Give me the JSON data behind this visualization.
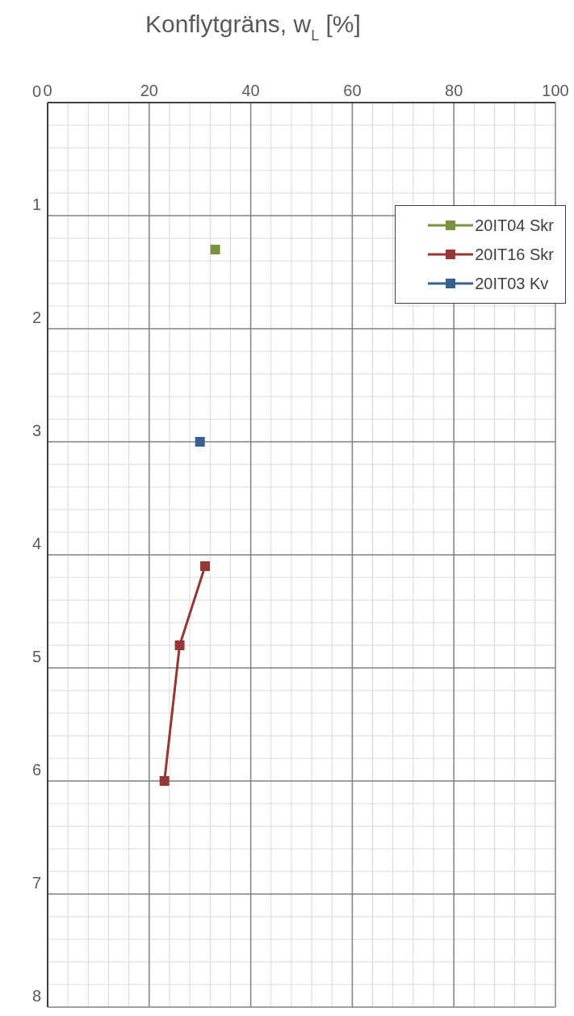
{
  "chart_data": {
    "type": "line",
    "xlabel": "Konflytgräns, w$_{L}$ [%]",
    "xlim": [
      0,
      100
    ],
    "ylim": [
      8,
      0
    ],
    "xticks": [
      0,
      {
        "value": 4,
        "label": null
      },
      {
        "value": 8,
        "label": null
      },
      {
        "value": 12,
        "label": null
      },
      {
        "value": 16,
        "label": null
      },
      20,
      {
        "value": 24,
        "label": null
      },
      {
        "value": 28,
        "label": null
      },
      {
        "value": 32,
        "label": null
      },
      {
        "value": 36,
        "label": null
      },
      40,
      {
        "value": 44,
        "label": null
      },
      {
        "value": 48,
        "label": null
      },
      {
        "value": 52,
        "label": null
      },
      {
        "value": 56,
        "label": null
      },
      60,
      {
        "value": 64,
        "label": null
      },
      {
        "value": 68,
        "label": null
      },
      {
        "value": 72,
        "label": null
      },
      {
        "value": 76,
        "label": null
      },
      80,
      {
        "value": 84,
        "label": null
      },
      {
        "value": 88,
        "label": null
      },
      {
        "value": 92,
        "label": null
      },
      {
        "value": 96,
        "label": null
      },
      100
    ],
    "yticks": [
      0,
      {
        "value": 0.2,
        "label": null
      },
      {
        "value": 0.4,
        "label": null
      },
      {
        "value": 0.6,
        "label": null
      },
      {
        "value": 0.8,
        "label": null
      },
      1,
      {
        "value": 1.2,
        "label": null
      },
      {
        "value": 1.4,
        "label": null
      },
      {
        "value": 1.6,
        "label": null
      },
      {
        "value": 1.8,
        "label": null
      },
      2,
      {
        "value": 2.2,
        "label": null
      },
      {
        "value": 2.4,
        "label": null
      },
      {
        "value": 2.6,
        "label": null
      },
      {
        "value": 2.8,
        "label": null
      },
      3,
      {
        "value": 3.2,
        "label": null
      },
      {
        "value": 3.4,
        "label": null
      },
      {
        "value": 3.6,
        "label": null
      },
      {
        "value": 3.8,
        "label": null
      },
      4,
      {
        "value": 4.2,
        "label": null
      },
      {
        "value": 4.4,
        "label": null
      },
      {
        "value": 4.6,
        "label": null
      },
      {
        "value": 4.8,
        "label": null
      },
      5,
      {
        "value": 5.2,
        "label": null
      },
      {
        "value": 5.4,
        "label": null
      },
      {
        "value": 5.6,
        "label": null
      },
      {
        "value": 5.8,
        "label": null
      },
      6,
      {
        "value": 6.2,
        "label": null
      },
      {
        "value": 6.4,
        "label": null
      },
      {
        "value": 6.6,
        "label": null
      },
      {
        "value": 6.8,
        "label": null
      },
      7,
      {
        "value": 7.2,
        "label": null
      },
      {
        "value": 7.4,
        "label": null
      },
      {
        "value": 7.6,
        "label": null
      },
      {
        "value": 7.8,
        "label": null
      },
      8
    ],
    "grid": true,
    "legend": "top right",
    "marker": "square",
    "line_style": "solid",
    "series": [
      {
        "name": "20IT04 Skr",
        "color": "#77933c",
        "x": [
          33
        ],
        "values": [
          1.3
        ]
      },
      {
        "name": "20IT16 Skr",
        "color": "#953735",
        "x": [
          31,
          26,
          23
        ],
        "values": [
          4.1,
          4.8,
          6.0
        ]
      },
      {
        "name": "20IT03 Kv",
        "color": "#376092",
        "x": [
          30
        ],
        "values": [
          3.0
        ]
      }
    ]
  }
}
